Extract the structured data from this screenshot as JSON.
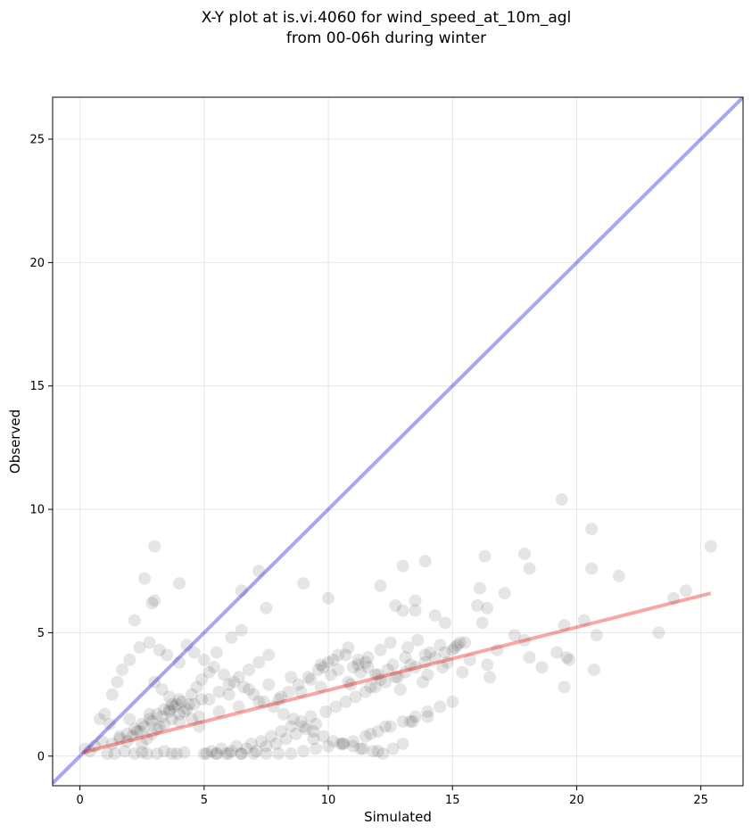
{
  "chart_data": {
    "type": "scatter",
    "title_lines": [
      "X-Y plot at is.vi.4060 for wind_speed_at_10m_agl",
      "from 00-06h during winter"
    ],
    "xlabel": "Simulated",
    "ylabel": "Observed",
    "xlim": [
      -1.1,
      26.7
    ],
    "ylim": [
      -1.2,
      26.7
    ],
    "xticks": [
      0,
      5,
      10,
      15,
      20,
      25
    ],
    "yticks": [
      0,
      5,
      10,
      15,
      20,
      25
    ],
    "grid": true,
    "point_color": "#000000",
    "point_opacity": 0.1,
    "reference_line": {
      "color": "#0000dd",
      "opacity": 0.35,
      "x": [
        -1.1,
        26.7
      ],
      "y": [
        -1.1,
        26.7
      ]
    },
    "regression_line": {
      "color": "#ee0000",
      "opacity": 0.35,
      "x": [
        0.1,
        25.4
      ],
      "y": [
        0.15,
        6.6
      ]
    },
    "series": [
      {
        "x": [
          3.0,
          19.4,
          20.6,
          7.2,
          17.9,
          18.1,
          20.6,
          21.7,
          13.9,
          16.3,
          13.0,
          9.0,
          4.0,
          2.6,
          10.0,
          12.1,
          3.0,
          2.9,
          16.1,
          17.1,
          16.4,
          12.7,
          13.5,
          6.5,
          7.5,
          2.2,
          13.0,
          13.5,
          14.3,
          14.7,
          16.0,
          16.2,
          19.5,
          20.3,
          20.8,
          23.3,
          23.9,
          24.4,
          25.4,
          19.6,
          19.7,
          19.5,
          20.7,
          19.2,
          18.1,
          18.6,
          17.9,
          17.5,
          16.5,
          16.8,
          15.7,
          15.4,
          14.8,
          15.2,
          14.6,
          13.9,
          14.0,
          13.3,
          13.8,
          13.1,
          12.8,
          12.4,
          12.9,
          11.5,
          11.9,
          11.0,
          10.9,
          11.3,
          11.7,
          12.1,
          12.6,
          10.4,
          10.8,
          10.1,
          9.7,
          9.3,
          9.7,
          8.9,
          8.5,
          8.1,
          7.6,
          7.2,
          6.8,
          6.4,
          6.0,
          5.6,
          5.2,
          4.8,
          4.4,
          4.0,
          3.6,
          3.2,
          2.8,
          2.4,
          2.0,
          1.6,
          1.2,
          0.9,
          0.6,
          0.4,
          0.2,
          1.1,
          1.4,
          1.8,
          2.2,
          2.5,
          2.7,
          3.1,
          3.4,
          3.7,
          3.9,
          4.2,
          1.9,
          2.1,
          2.3,
          2.6,
          2.9,
          3.3,
          3.6,
          3.8,
          4.1,
          1.5,
          1.0,
          0.8,
          1.3,
          1.7,
          2.0,
          2.4,
          2.8,
          3.2,
          3.5,
          4.0,
          4.3,
          4.6,
          5.0,
          5.4,
          5.8,
          6.2,
          6.6,
          7.0,
          7.4,
          7.8,
          8.2,
          8.6,
          9.0,
          9.4,
          9.8,
          10.2,
          10.6,
          11.0,
          11.4,
          11.8,
          12.2,
          12.6,
          13.0,
          13.4,
          5.1,
          5.3,
          5.5,
          5.7,
          5.9,
          6.1,
          6.3,
          6.5,
          6.7,
          6.9,
          7.1,
          7.3,
          7.5,
          7.7,
          7.9,
          8.1,
          8.3,
          8.5,
          8.7,
          8.9,
          9.1,
          9.3,
          9.5,
          9.9,
          10.3,
          10.7,
          11.1,
          11.5,
          11.9,
          12.3,
          12.7,
          13.1,
          13.5,
          13.9,
          14.3,
          14.7,
          15.1,
          15.5,
          4.5,
          4.7,
          4.9,
          5.2,
          5.6,
          6.0,
          6.4,
          6.8,
          7.2,
          7.6,
          8.0,
          8.4,
          8.8,
          9.2,
          9.6,
          10.0,
          10.4,
          10.8,
          11.2,
          11.6,
          12.0,
          3.0,
          3.3,
          3.6,
          3.9,
          4.2,
          4.5,
          4.8,
          2.5,
          2.7,
          2.9,
          3.1,
          3.4,
          3.7,
          4.0,
          4.3,
          4.6,
          4.9,
          1.3,
          1.6,
          1.9,
          2.2,
          2.5,
          2.8,
          3.1,
          3.4,
          3.7,
          4.0,
          5.0,
          5.5,
          6.0,
          6.5,
          7.0,
          7.5,
          8.0,
          8.5,
          9.0,
          9.5,
          10.0,
          10.5,
          11.0,
          11.5,
          12.0,
          12.5,
          13.0,
          13.5,
          14.0,
          14.5,
          15.0,
          9.8,
          10.2,
          10.7,
          11.2,
          11.6,
          12.1,
          12.5,
          13.2,
          13.6,
          14.1,
          14.5,
          15.0,
          15.3,
          16.4,
          11.7,
          12.3,
          13.3,
          14.0,
          12.0,
          11.3,
          10.6,
          9.4,
          6.5,
          6.1,
          5.5
        ],
        "y": [
          8.5,
          10.4,
          9.2,
          7.5,
          8.2,
          7.6,
          7.6,
          7.3,
          7.9,
          8.1,
          7.7,
          7.0,
          7.0,
          7.2,
          6.4,
          6.9,
          6.3,
          6.2,
          6.8,
          6.6,
          6.0,
          6.1,
          6.3,
          6.7,
          6.0,
          5.5,
          5.9,
          5.9,
          5.7,
          5.4,
          6.1,
          5.4,
          5.3,
          5.5,
          4.9,
          5.0,
          6.4,
          6.7,
          8.5,
          4.0,
          3.9,
          2.8,
          3.5,
          4.2,
          4.0,
          3.6,
          4.7,
          4.9,
          3.2,
          4.3,
          3.9,
          3.4,
          3.8,
          4.5,
          3.6,
          4.1,
          3.3,
          3.7,
          3.0,
          4.0,
          3.2,
          3.5,
          2.7,
          3.8,
          3.3,
          3.6,
          2.9,
          3.4,
          2.8,
          3.1,
          3.7,
          3.5,
          3.0,
          3.3,
          2.8,
          3.1,
          3.7,
          2.6,
          3.2,
          2.4,
          2.9,
          2.2,
          2.7,
          2.0,
          2.5,
          1.8,
          2.3,
          1.6,
          2.1,
          1.4,
          1.9,
          1.2,
          1.7,
          1.0,
          1.5,
          0.8,
          1.3,
          0.6,
          0.4,
          0.2,
          0.3,
          0.1,
          0.1,
          0.2,
          0.1,
          0.15,
          0.1,
          0.1,
          0.2,
          0.1,
          0.1,
          0.15,
          0.6,
          0.8,
          1.0,
          1.2,
          1.4,
          1.6,
          1.8,
          2.0,
          2.2,
          3.0,
          1.7,
          1.5,
          2.5,
          3.5,
          3.9,
          4.4,
          4.6,
          4.3,
          4.1,
          3.8,
          4.5,
          4.2,
          3.9,
          3.6,
          3.3,
          3.0,
          2.8,
          2.5,
          2.2,
          2.0,
          1.7,
          1.5,
          1.2,
          1.0,
          0.8,
          0.6,
          0.5,
          0.4,
          0.3,
          0.2,
          0.1,
          0.3,
          0.5,
          1.4,
          0.1,
          0.2,
          0.1,
          0.3,
          0.1,
          0.2,
          0.4,
          0.1,
          0.3,
          0.5,
          0.2,
          0.6,
          0.4,
          0.8,
          0.5,
          1.0,
          0.7,
          1.2,
          0.9,
          1.4,
          1.1,
          1.6,
          1.3,
          1.8,
          2.0,
          2.2,
          2.4,
          2.6,
          2.8,
          3.0,
          3.2,
          3.4,
          3.6,
          3.8,
          4.0,
          4.2,
          4.4,
          4.6,
          2.5,
          2.8,
          3.1,
          3.4,
          2.6,
          2.9,
          3.2,
          3.5,
          3.8,
          4.1,
          2.3,
          2.6,
          2.9,
          3.2,
          3.5,
          3.8,
          4.1,
          4.4,
          3.9,
          3.6,
          3.3,
          3.0,
          2.7,
          2.4,
          2.1,
          1.8,
          1.5,
          1.2,
          0.5,
          0.7,
          0.9,
          1.1,
          1.3,
          1.5,
          1.7,
          1.9,
          2.1,
          2.3,
          0.5,
          0.7,
          0.9,
          1.1,
          1.3,
          1.5,
          1.7,
          1.9,
          2.1,
          2.3,
          0.1,
          0.1,
          0.1,
          0.1,
          0.1,
          0.1,
          0.1,
          0.1,
          0.2,
          0.3,
          0.4,
          0.5,
          0.6,
          0.8,
          1.0,
          1.2,
          1.4,
          1.6,
          1.8,
          2.0,
          2.2,
          3.6,
          3.9,
          4.1,
          3.7,
          4.0,
          4.3,
          4.6,
          4.4,
          4.7,
          4.2,
          4.5,
          4.3,
          4.6,
          3.7,
          0.9,
          1.2,
          1.4,
          1.6,
          0.2,
          0.3,
          0.5,
          0.7,
          5.1,
          4.8,
          4.2
        ]
      }
    ]
  }
}
